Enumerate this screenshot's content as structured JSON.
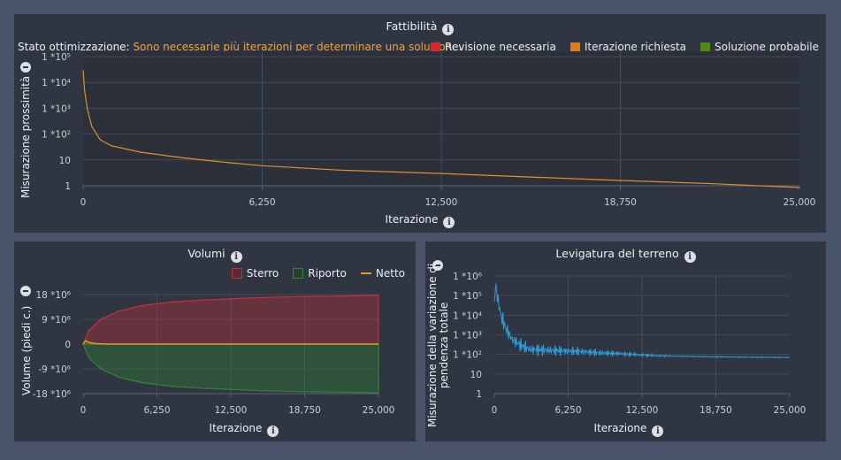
{
  "feasibility": {
    "title": "Fattibilità",
    "status_label": "Stato ottimizzazione:",
    "status_message": "Sono necessarie più iterazioni per determinare una soluzione.",
    "legend": [
      {
        "label": "Revisione necessaria",
        "color": "#d9262e"
      },
      {
        "label": "Iterazione richiesta",
        "color": "#e57b14"
      },
      {
        "label": "Soluzione probabile",
        "color": "#4f8a12"
      }
    ],
    "ylabel": "Misurazione prossimità",
    "xlabel": "Iterazione"
  },
  "volumes": {
    "title": "Volumi",
    "ylabel": "Volume (piedi c.)",
    "xlabel": "Iterazione",
    "legend": [
      {
        "label": "Sterro",
        "color": "#c8303a"
      },
      {
        "label": "Riporto",
        "color": "#2f8a2f"
      },
      {
        "label": "Netto",
        "color": "#e09a2a"
      }
    ]
  },
  "smoothing": {
    "title": "Levigatura del terreno",
    "ylabel_line1": "Misurazione della variazione di",
    "ylabel_line2": "pendenza totale",
    "xlabel": "Iterazione"
  },
  "chart_data": [
    {
      "type": "line",
      "title": "Fattibilità",
      "xlabel": "Iterazione",
      "ylabel": "Misurazione prossimità",
      "y_scale": "log",
      "xlim": [
        0,
        25000
      ],
      "x_ticks": [
        "0",
        "6,250",
        "12,500",
        "18,750",
        "25,000"
      ],
      "y_ticks": [
        "1",
        "10",
        "1 *10²",
        "1 *10³",
        "1 *10⁴",
        "1 *10⁵"
      ],
      "ylim": [
        1,
        100000
      ],
      "series": [
        {
          "color": "#e0902a",
          "x": [
            0,
            50,
            150,
            300,
            600,
            1000,
            2000,
            3500,
            5000,
            6250,
            9000,
            12500,
            15000,
            18750,
            22000,
            25000
          ],
          "y": [
            30000,
            5000,
            900,
            200,
            60,
            35,
            20,
            12,
            8,
            6,
            4,
            3,
            2.3,
            1.6,
            1.2,
            0.85
          ]
        }
      ]
    },
    {
      "type": "area",
      "title": "Volumi",
      "xlabel": "Iterazione",
      "ylabel": "Volume (piedi c.)",
      "xlim": [
        0,
        25000
      ],
      "ylim": [
        -18000000,
        18000000
      ],
      "x_ticks": [
        "0",
        "6,250",
        "12,500",
        "18,750",
        "25,000"
      ],
      "y_ticks": [
        "-18 *10⁶",
        "-9 *10⁶",
        "0",
        "9 *10⁶",
        "18 *10⁶"
      ],
      "series": [
        {
          "name": "Sterro",
          "x": [
            0,
            500,
            1500,
            3000,
            5000,
            7500,
            10000,
            12500,
            15000,
            18750,
            22000,
            25000
          ],
          "y": [
            0,
            5000000,
            9000000,
            12000000,
            14000000,
            15300000,
            16000000,
            16500000,
            16900000,
            17300000,
            17500000,
            17700000
          ]
        },
        {
          "name": "Riporto",
          "x": [
            0,
            500,
            1500,
            3000,
            5000,
            7500,
            10000,
            12500,
            15000,
            18750,
            22000,
            25000
          ],
          "y": [
            0,
            -5000000,
            -9000000,
            -12000000,
            -14000000,
            -15300000,
            -16000000,
            -16500000,
            -16900000,
            -17300000,
            -17500000,
            -17700000
          ]
        },
        {
          "name": "Netto",
          "x": [
            0,
            200,
            500,
            1000,
            2000,
            25000
          ],
          "y": [
            0,
            1200000,
            600000,
            200000,
            0,
            0
          ]
        }
      ]
    },
    {
      "type": "line",
      "title": "Levigatura del terreno",
      "xlabel": "Iterazione",
      "ylabel": "Misurazione della variazione di pendenza totale",
      "y_scale": "log",
      "xlim": [
        0,
        25000
      ],
      "ylim": [
        1,
        1000000
      ],
      "x_ticks": [
        "0",
        "6,250",
        "12,500",
        "18,750",
        "25,000"
      ],
      "y_ticks": [
        "1",
        "10",
        "1 *10²",
        "1 *10³",
        "1 *10⁴",
        "1 *10⁵",
        "1 *10⁶"
      ],
      "series": [
        {
          "color": "#2e9fdc",
          "x": [
            0,
            100,
            300,
            600,
            1000,
            1500,
            2200,
            3000,
            4000,
            5000,
            6250,
            7500,
            9000,
            10500,
            12500,
            14000,
            16000,
            18750,
            22000,
            25000
          ],
          "y": [
            50000,
            400000,
            60000,
            8000,
            2000,
            600,
            300,
            180,
            170,
            160,
            150,
            140,
            120,
            110,
            95,
            85,
            80,
            75,
            72,
            70
          ]
        }
      ]
    }
  ]
}
